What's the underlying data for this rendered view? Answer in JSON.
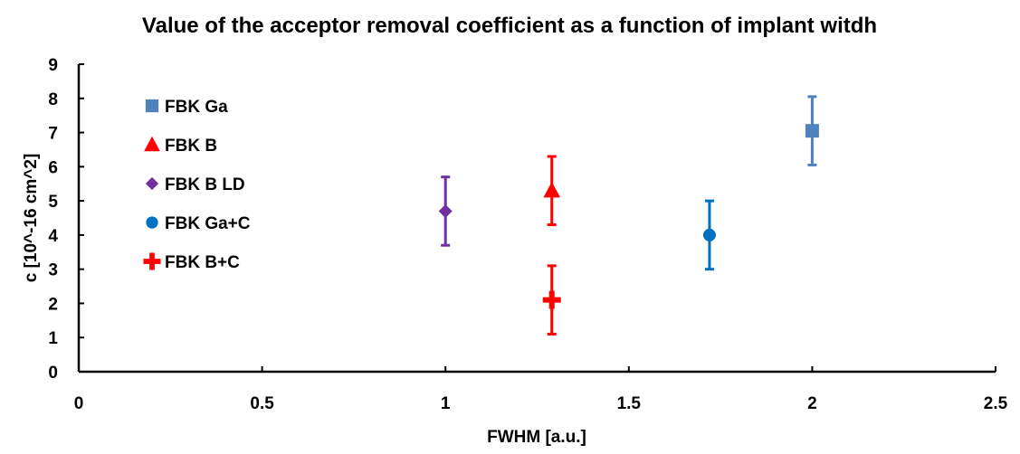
{
  "chart_data": {
    "type": "scatter",
    "title": "Value of the acceptor removal coefficient as a function of implant witdh",
    "xlabel": "FWHM [a.u.]",
    "ylabel": "c [10^-16 cm^2]",
    "xlim": [
      0,
      2.5
    ],
    "ylim": [
      0,
      9
    ],
    "x_ticks": [
      0,
      0.5,
      1,
      1.5,
      2,
      2.5
    ],
    "x_tick_labels": [
      "0",
      "0.5",
      "1",
      "1.5",
      "2",
      "2.5"
    ],
    "y_ticks": [
      0,
      1,
      2,
      3,
      4,
      5,
      6,
      7,
      8,
      9
    ],
    "y_tick_labels": [
      "0",
      "1",
      "2",
      "3",
      "4",
      "5",
      "6",
      "7",
      "8",
      "9"
    ],
    "grid": false,
    "legend_position": "top-left",
    "series": [
      {
        "name": "FBK Ga",
        "marker": "square",
        "color": "#4F81BD",
        "x": [
          2.0
        ],
        "y": [
          7.05
        ],
        "error": [
          1.0
        ]
      },
      {
        "name": "FBK B",
        "marker": "triangle",
        "color": "#FF0000",
        "x": [
          1.29
        ],
        "y": [
          5.3
        ],
        "error": [
          1.0
        ]
      },
      {
        "name": "FBK B LD",
        "marker": "diamond",
        "color": "#7030A0",
        "x": [
          1.0
        ],
        "y": [
          4.7
        ],
        "error": [
          1.0
        ]
      },
      {
        "name": "FBK Ga+C",
        "marker": "circle",
        "color": "#0070C0",
        "x": [
          1.72
        ],
        "y": [
          4.0
        ],
        "error": [
          1.0
        ]
      },
      {
        "name": "FBK B+C",
        "marker": "plus",
        "color": "#FF0000",
        "x": [
          1.29
        ],
        "y": [
          2.1
        ],
        "error": [
          1.0
        ]
      }
    ]
  }
}
